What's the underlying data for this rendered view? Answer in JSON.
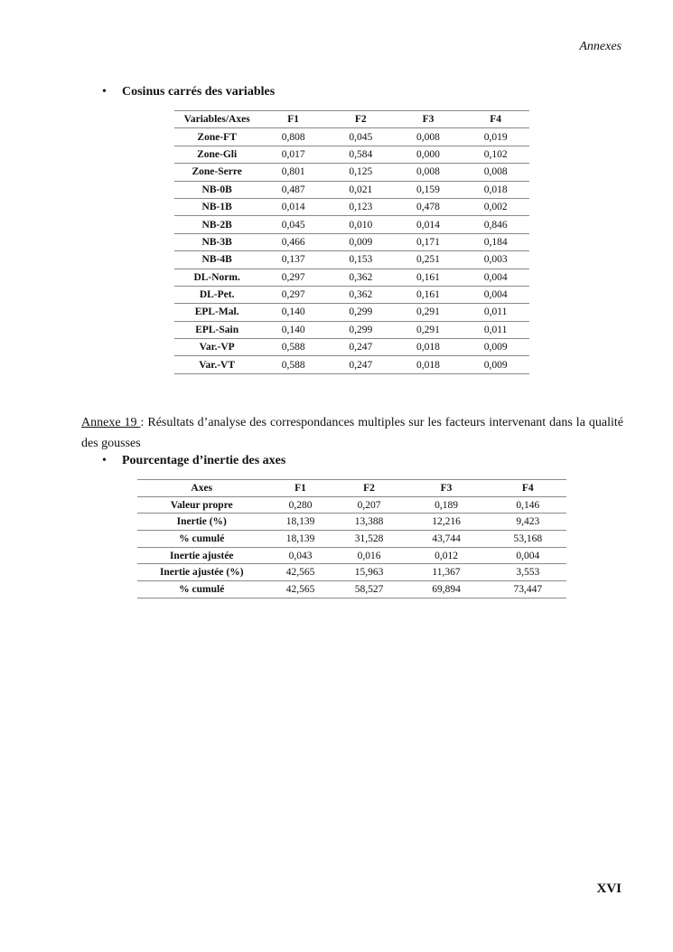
{
  "header": "Annexes",
  "section1": {
    "title": "Cosinus carrés des variables",
    "columns": [
      "Variables/Axes",
      "F1",
      "F2",
      "F3",
      "F4"
    ],
    "rows": [
      [
        "Zone-FT",
        "0,808",
        "0,045",
        "0,008",
        "0,019"
      ],
      [
        "Zone-Gli",
        "0,017",
        "0,584",
        "0,000",
        "0,102"
      ],
      [
        "Zone-Serre",
        "0,801",
        "0,125",
        "0,008",
        "0,008"
      ],
      [
        "NB-0B",
        "0,487",
        "0,021",
        "0,159",
        "0,018"
      ],
      [
        "NB-1B",
        "0,014",
        "0,123",
        "0,478",
        "0,002"
      ],
      [
        "NB-2B",
        "0,045",
        "0,010",
        "0,014",
        "0,846"
      ],
      [
        "NB-3B",
        "0,466",
        "0,009",
        "0,171",
        "0,184"
      ],
      [
        "NB-4B",
        "0,137",
        "0,153",
        "0,251",
        "0,003"
      ],
      [
        "DL-Norm.",
        "0,297",
        "0,362",
        "0,161",
        "0,004"
      ],
      [
        "DL-Pet.",
        "0,297",
        "0,362",
        "0,161",
        "0,004"
      ],
      [
        "EPL-Mal.",
        "0,140",
        "0,299",
        "0,291",
        "0,011"
      ],
      [
        "EPL-Sain",
        "0,140",
        "0,299",
        "0,291",
        "0,011"
      ],
      [
        "Var.-VP",
        "0,588",
        "0,247",
        "0,018",
        "0,009"
      ],
      [
        "Var.-VT",
        "0,588",
        "0,247",
        "0,018",
        "0,009"
      ]
    ]
  },
  "annex": {
    "label": "Annexe 19 ",
    "text": ": Résultats d’analyse des correspondances multiples sur les facteurs intervenant dans la qualité des gousses"
  },
  "section2": {
    "title": "Pourcentage d’inertie des axes",
    "columns": [
      "Axes",
      "F1",
      "F2",
      "F3",
      "F4"
    ],
    "rows": [
      [
        "Valeur propre",
        "0,280",
        "0,207",
        "0,189",
        "0,146"
      ],
      [
        "Inertie (%)",
        "18,139",
        "13,388",
        "12,216",
        "9,423"
      ],
      [
        "% cumulé",
        "18,139",
        "31,528",
        "43,744",
        "53,168"
      ],
      [
        "Inertie ajustée",
        "0,043",
        "0,016",
        "0,012",
        "0,004"
      ],
      [
        "Inertie ajustée (%)",
        "42,565",
        "15,963",
        "11,367",
        "3,553"
      ],
      [
        "% cumulé",
        "42,565",
        "58,527",
        "69,894",
        "73,447"
      ]
    ]
  },
  "page_number": "XVI"
}
